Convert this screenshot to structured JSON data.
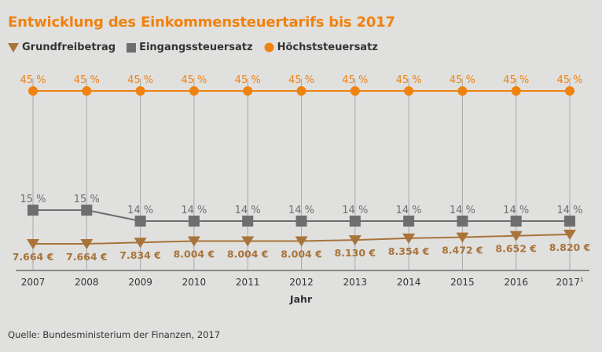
{
  "chart_data": {
    "type": "line",
    "title": "Entwicklung des Einkommensteuertarifs bis 2017",
    "xlabel": "Jahr",
    "categories": [
      "2007",
      "2008",
      "2009",
      "2010",
      "2011",
      "2012",
      "2013",
      "2014",
      "2015",
      "2016",
      "2017"
    ],
    "last_category_footnote": "1",
    "legend_position": "top-left",
    "grid": "vertical",
    "series": [
      {
        "name": "Grundfreibetrag",
        "marker": "triangle-down",
        "color": "#a8743a",
        "values": [
          7664,
          7664,
          7834,
          8004,
          8004,
          8004,
          8130,
          8354,
          8472,
          8652,
          8820
        ],
        "labels": [
          "7.664 €",
          "7.664 €",
          "7.834 €",
          "8.004 €",
          "8.004 €",
          "8.004 €",
          "8.130 €",
          "8.354 €",
          "8.472 €",
          "8.652 €",
          "8.820 €"
        ]
      },
      {
        "name": "Eingangssteuersatz",
        "marker": "square",
        "color": "#6e6e6e",
        "values": [
          15,
          15,
          14,
          14,
          14,
          14,
          14,
          14,
          14,
          14,
          14
        ],
        "labels": [
          "15 %",
          "15 %",
          "14 %",
          "14 %",
          "14 %",
          "14 %",
          "14 %",
          "14 %",
          "14 %",
          "14 %",
          "14 %"
        ]
      },
      {
        "name": "Höchststeuersatz",
        "marker": "circle",
        "color": "#f0820f",
        "values": [
          45,
          45,
          45,
          45,
          45,
          45,
          45,
          45,
          45,
          45,
          45
        ],
        "labels": [
          "45 %",
          "45 %",
          "45 %",
          "45 %",
          "45 %",
          "45 %",
          "45 %",
          "45 %",
          "45 %",
          "45 %",
          "45 %"
        ]
      }
    ]
  },
  "source": "Quelle: Bundesministerium der Finanzen, 2017"
}
